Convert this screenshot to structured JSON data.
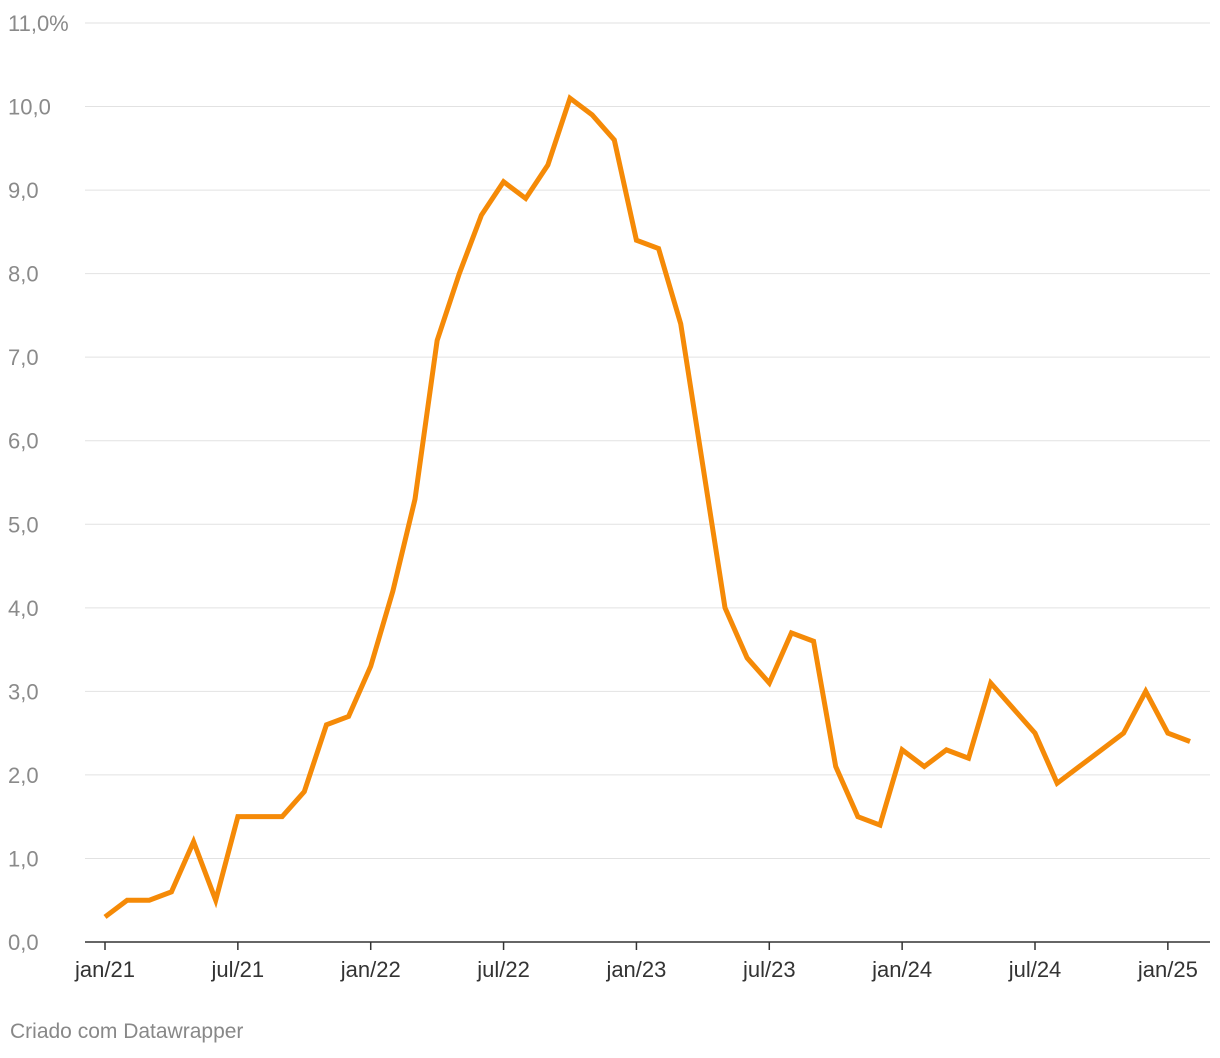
{
  "footer": {
    "credit": "Criado com Datawrapper"
  },
  "colors": {
    "line": "#f58a07",
    "grid": "#e2e2e2",
    "axis": "#333333",
    "tick_text": "#8a8a8a"
  },
  "chart_data": {
    "type": "line",
    "title": "",
    "xlabel": "",
    "ylabel": "",
    "ylim": [
      0,
      11
    ],
    "y_ticks": [
      {
        "value": 0,
        "label": "0,0"
      },
      {
        "value": 1,
        "label": "1,0"
      },
      {
        "value": 2,
        "label": "2,0"
      },
      {
        "value": 3,
        "label": "3,0"
      },
      {
        "value": 4,
        "label": "4,0"
      },
      {
        "value": 5,
        "label": "5,0"
      },
      {
        "value": 6,
        "label": "6,0"
      },
      {
        "value": 7,
        "label": "7,0"
      },
      {
        "value": 8,
        "label": "8,0"
      },
      {
        "value": 9,
        "label": "9,0"
      },
      {
        "value": 10,
        "label": "10,0"
      },
      {
        "value": 11,
        "label": "11,0%"
      }
    ],
    "x_ticks": [
      {
        "value": "2021-01",
        "label": "jan/21"
      },
      {
        "value": "2021-07",
        "label": "jul/21"
      },
      {
        "value": "2022-01",
        "label": "jan/22"
      },
      {
        "value": "2022-07",
        "label": "jul/22"
      },
      {
        "value": "2023-01",
        "label": "jan/23"
      },
      {
        "value": "2023-07",
        "label": "jul/23"
      },
      {
        "value": "2024-01",
        "label": "jan/24"
      },
      {
        "value": "2024-07",
        "label": "jul/24"
      },
      {
        "value": "2025-01",
        "label": "jan/25"
      }
    ],
    "grid": true,
    "series": [
      {
        "x": [
          "2021-01",
          "2021-02",
          "2021-03",
          "2021-04",
          "2021-05",
          "2021-06",
          "2021-07",
          "2021-08",
          "2021-09",
          "2021-10",
          "2021-11",
          "2021-12",
          "2022-01",
          "2022-02",
          "2022-03",
          "2022-04",
          "2022-05",
          "2022-06",
          "2022-07",
          "2022-08",
          "2022-09",
          "2022-10",
          "2022-11",
          "2022-12",
          "2023-01",
          "2023-02",
          "2023-03",
          "2023-04",
          "2023-05",
          "2023-06",
          "2023-07",
          "2023-08",
          "2023-09",
          "2023-10",
          "2023-11",
          "2023-12",
          "2024-01",
          "2024-02",
          "2024-03",
          "2024-04",
          "2024-05",
          "2024-06",
          "2024-07",
          "2024-08",
          "2024-09",
          "2024-10",
          "2024-11",
          "2024-12",
          "2025-01",
          "2025-02"
        ],
        "values": [
          0.3,
          0.5,
          0.5,
          0.6,
          1.2,
          0.5,
          1.5,
          1.5,
          1.5,
          1.8,
          2.6,
          2.7,
          3.3,
          4.2,
          5.3,
          7.2,
          8.0,
          8.7,
          9.1,
          8.9,
          9.3,
          10.1,
          9.9,
          9.6,
          8.4,
          8.3,
          7.4,
          5.7,
          4.0,
          3.4,
          3.1,
          3.7,
          3.6,
          2.1,
          1.5,
          1.4,
          2.3,
          2.1,
          2.3,
          2.2,
          3.1,
          2.8,
          2.5,
          1.9,
          2.1,
          2.3,
          2.5,
          3.0,
          2.5,
          2.4
        ]
      }
    ]
  }
}
